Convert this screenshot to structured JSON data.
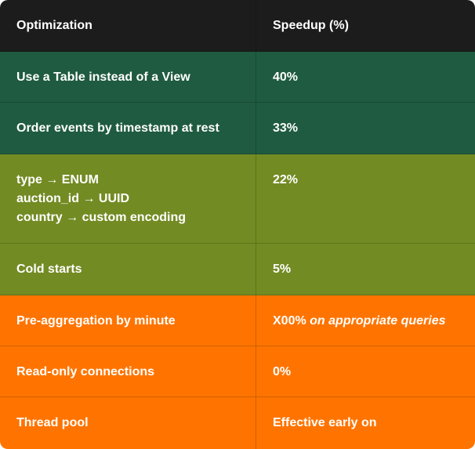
{
  "table": {
    "header": [
      "Optimization",
      "Speedup (%)"
    ],
    "rows": [
      [
        "Use a Table instead of a View",
        "40%"
      ],
      [
        "Order events by timestamp at rest",
        "33%"
      ],
      [
        [
          "type → ENUM",
          "auction_id → UUID",
          "country → custom encoding"
        ],
        "22%"
      ],
      [
        "Cold starts",
        "5%"
      ],
      [
        "Pre-aggregation by minute",
        [
          "X00%",
          "on appropriate queries"
        ]
      ],
      [
        "Read-only connections",
        "0%"
      ],
      [
        "Thread pool",
        "Effective early on"
      ]
    ]
  }
}
